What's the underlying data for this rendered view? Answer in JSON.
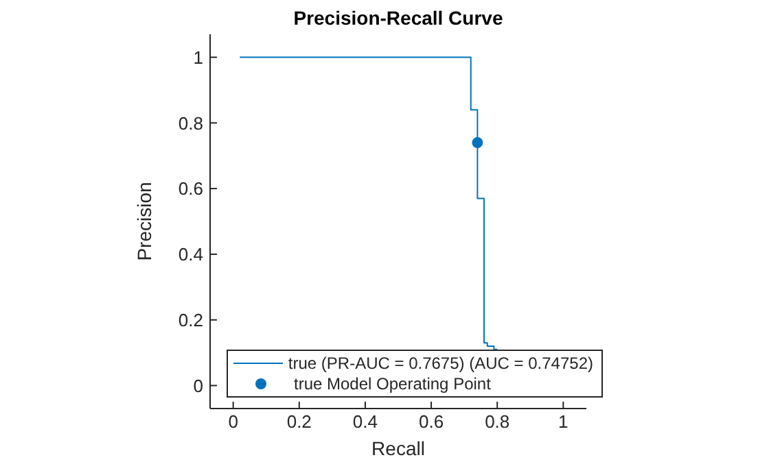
{
  "chart_data": {
    "type": "line",
    "title": "Precision-Recall Curve",
    "xlabel": "Recall",
    "ylabel": "Precision",
    "series": [
      {
        "name": "true (PR-AUC = 0.7675) (AUC = 0.74752)",
        "type": "step",
        "marker": "none",
        "color": "#0072bd",
        "x": [
          0.02,
          0.72,
          0.74,
          0.76,
          0.77,
          0.79,
          0.8
        ],
        "values": [
          1,
          0.84,
          0.57,
          0.13,
          0.12,
          0.11,
          0.11
        ]
      },
      {
        "name": "true Model Operating Point",
        "type": "scatter",
        "marker": "circle",
        "color": "#0072bd",
        "x": [
          0.74
        ],
        "values": [
          0.74
        ]
      }
    ],
    "xlim": [
      -0.07,
      1.07
    ],
    "ylim": [
      -0.07,
      1.07
    ],
    "xticks": [
      0,
      0.2,
      0.4,
      0.6,
      0.8,
      1
    ],
    "yticks": [
      0,
      0.2,
      0.4,
      0.6,
      0.8,
      1
    ],
    "legend": "bottom",
    "grid": false
  }
}
